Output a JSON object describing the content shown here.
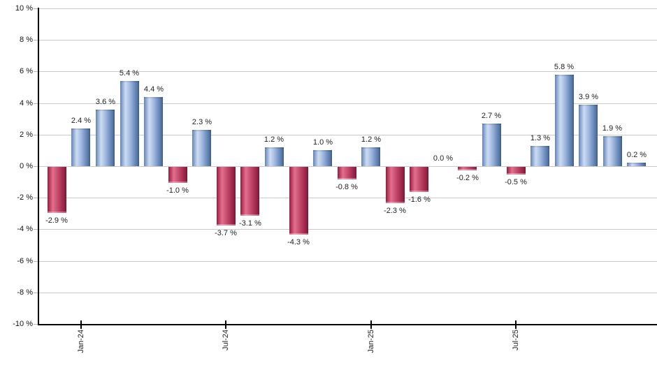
{
  "chart": {
    "background": "#ffffff",
    "colors": {
      "positive_bar_main": "#7a98c6",
      "positive_bar_highlight": "#cfdcf2",
      "positive_bar_dark": "#3a5880",
      "negative_bar_main": "#cc5374",
      "negative_bar_highlight": "#e2708e",
      "negative_bar_dark": "#6e1831",
      "gridline": "#c9c9c9",
      "axis": "#000000",
      "label_text": "#222222"
    }
  },
  "chart_data": {
    "type": "bar",
    "title": "",
    "xlabel": "",
    "ylabel": "",
    "ylim": [
      -10,
      10
    ],
    "grid": true,
    "legend": null,
    "unit": "%",
    "y_tick_labels": [
      "10 %",
      "8 %",
      "6 %",
      "4 %",
      "2 %",
      "0 %",
      "-2 %",
      "-4 %",
      "-6 %",
      "-8 %",
      "-10 %"
    ],
    "y_tick_values": [
      10,
      8,
      6,
      4,
      2,
      0,
      -2,
      -4,
      -6,
      -8,
      -10
    ],
    "x_tick_labels": [
      {
        "label": "Jan-24",
        "bar_index": 1
      },
      {
        "label": "Jul-24",
        "bar_index": 7
      },
      {
        "label": "Jan-25",
        "bar_index": 13
      },
      {
        "label": "Jul-25",
        "bar_index": 19
      }
    ],
    "bars": [
      {
        "value": -2.9,
        "label": "-2.9 %"
      },
      {
        "value": 2.4,
        "label": "2.4 %"
      },
      {
        "value": 3.6,
        "label": "3.6 %"
      },
      {
        "value": 5.4,
        "label": "5.4 %"
      },
      {
        "value": 4.4,
        "label": "4.4 %"
      },
      {
        "value": -1.0,
        "label": "-1.0 %"
      },
      {
        "value": 2.3,
        "label": "2.3 %"
      },
      {
        "value": -3.7,
        "label": "-3.7 %"
      },
      {
        "value": -3.1,
        "label": "-3.1 %"
      },
      {
        "value": 1.2,
        "label": "1.2 %"
      },
      {
        "value": -4.3,
        "label": "-4.3 %"
      },
      {
        "value": 1.0,
        "label": "1.0 %"
      },
      {
        "value": -0.8,
        "label": "-0.8 %"
      },
      {
        "value": 1.2,
        "label": "1.2 %"
      },
      {
        "value": -2.3,
        "label": "-2.3 %"
      },
      {
        "value": -1.6,
        "label": "-1.6 %"
      },
      {
        "value": 0.0,
        "label": "0.0 %"
      },
      {
        "value": -0.2,
        "label": "-0.2 %"
      },
      {
        "value": 2.7,
        "label": "2.7 %"
      },
      {
        "value": -0.5,
        "label": "-0.5 %"
      },
      {
        "value": 1.3,
        "label": "1.3 %"
      },
      {
        "value": 5.8,
        "label": "5.8 %"
      },
      {
        "value": 3.9,
        "label": "3.9 %"
      },
      {
        "value": 1.9,
        "label": "1.9 %"
      },
      {
        "value": 0.2,
        "label": "0.2 %"
      }
    ]
  }
}
